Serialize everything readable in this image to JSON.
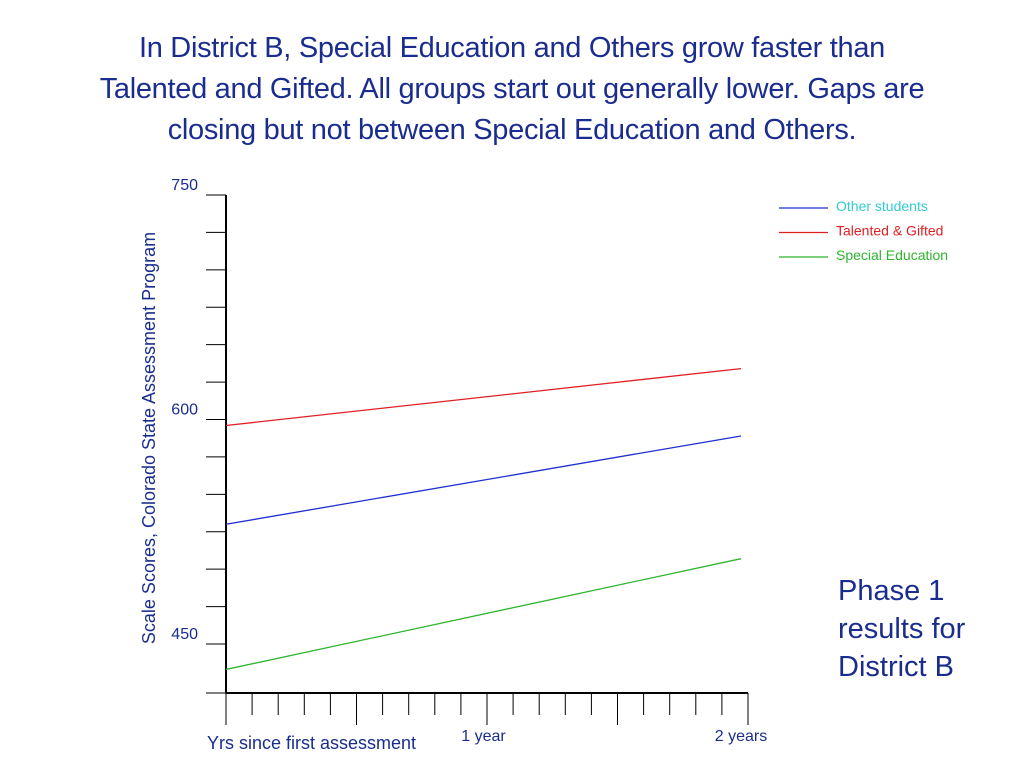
{
  "slide": {
    "title_lines": [
      "In District B, Special Education and Others grow faster than",
      "Talented and Gifted.  All groups start out generally lower.  Gaps are",
      "closing but not between Special Education and Others."
    ],
    "caption_lines": [
      "Phase 1",
      "results for",
      "District B"
    ]
  },
  "colors": {
    "text": "#1a2d8f",
    "axis": "#000000",
    "other_students": "#1f2fd0",
    "talented_gifted": "#e01f25",
    "special_education": "#2fb52f",
    "legend_other_text": "#33cccc"
  },
  "chart_data": {
    "type": "line",
    "ylabel": "Scale Scores, Colorado State Assessment Program",
    "xlabel": "Yrs since first assessment",
    "ylim": [
      425,
      750
    ],
    "y_tick_labels": [
      {
        "value": 750,
        "label": "750"
      },
      {
        "value": 600,
        "label": "600"
      },
      {
        "value": 450,
        "label": "450"
      }
    ],
    "y_minor_ticks": [
      450,
      475,
      500,
      525,
      550,
      575,
      600,
      625,
      650,
      675,
      700,
      725,
      750
    ],
    "xlim": [
      0,
      2.02
    ],
    "x_tick_labels": [
      {
        "value": 1,
        "label": "1 year"
      },
      {
        "value": 2,
        "label": "2 years"
      }
    ],
    "legend_position": "top-right",
    "series": [
      {
        "name": "Other students",
        "color_key": "other_students",
        "x": [
          0,
          2
        ],
        "values": [
          530,
          589
        ]
      },
      {
        "name": "Talented & Gifted",
        "color_key": "talented_gifted",
        "x": [
          0,
          2
        ],
        "values": [
          596,
          634
        ]
      },
      {
        "name": "Special Education",
        "color_key": "special_education",
        "x": [
          0,
          2
        ],
        "values": [
          433,
          507
        ]
      }
    ]
  }
}
